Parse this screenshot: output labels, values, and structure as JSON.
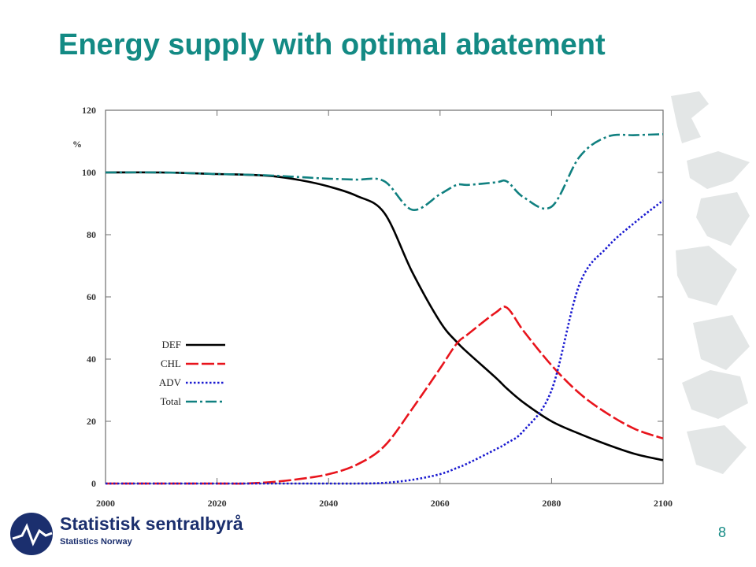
{
  "slide": {
    "title": "Energy supply with optimal abatement",
    "page_number": "8"
  },
  "logo": {
    "name": "Statistisk sentralbyrå",
    "subtitle": "Statistics Norway"
  },
  "colors": {
    "title": "#138a84",
    "DEF": "#000000",
    "CHL": "#e8141c",
    "ADV": "#1a1ad0",
    "Total": "#108080"
  },
  "chart_data": {
    "type": "line",
    "ylabel": "%",
    "xlim": [
      2000,
      2100
    ],
    "ylim": [
      0,
      120
    ],
    "xticks": [
      "2000",
      "2020",
      "2040",
      "2060",
      "2080",
      "2100"
    ],
    "yticks": [
      "0",
      "20",
      "40",
      "60",
      "80",
      "100",
      "120"
    ],
    "legend_position": "left-center",
    "grid": false,
    "x": [
      2000,
      2010,
      2020,
      2025,
      2030,
      2035,
      2040,
      2045,
      2050,
      2055,
      2060,
      2063,
      2065,
      2070,
      2072,
      2075,
      2080,
      2085,
      2090,
      2095,
      2100
    ],
    "series": [
      {
        "name": "DEF",
        "values": [
          100,
          100,
          99.5,
          99.3,
          98.8,
          97.5,
          95.5,
          92.5,
          87,
          68,
          52,
          45.5,
          42,
          34,
          30.5,
          26,
          20,
          16,
          12.5,
          9.5,
          7.5
        ]
      },
      {
        "name": "CHL",
        "values": [
          0,
          0,
          0,
          0,
          0.5,
          1.5,
          3,
          6,
          12,
          24,
          37,
          45,
          48,
          55,
          56.5,
          49,
          38,
          29,
          22.5,
          17.5,
          14.5
        ]
      },
      {
        "name": "ADV",
        "values": [
          0,
          0,
          0,
          0,
          0,
          0,
          0,
          0,
          0.2,
          1.2,
          3,
          5,
          6.5,
          11,
          13,
          17,
          30,
          64,
          76,
          84,
          91
        ]
      },
      {
        "name": "Total",
        "values": [
          100,
          100,
          99.5,
          99.3,
          99,
          98.5,
          98,
          97.7,
          97.2,
          88,
          93,
          96,
          96,
          96.8,
          97.1,
          92,
          89,
          105,
          111.5,
          112,
          112.3
        ]
      }
    ]
  }
}
